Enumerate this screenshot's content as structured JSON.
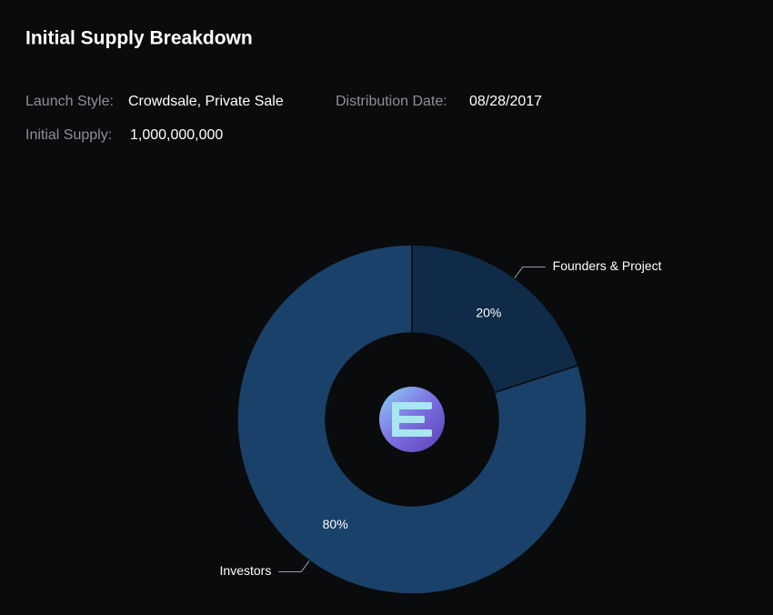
{
  "chart_data": {
    "type": "pie",
    "title": "Initial Supply Breakdown",
    "categories": [
      "Founders & Project",
      "Investors"
    ],
    "values": [
      20,
      80
    ],
    "value_labels": [
      "20%",
      "80%"
    ],
    "colors": [
      "#0f2b47",
      "#1a4169"
    ],
    "donut": true
  },
  "details": [
    {
      "label": "Launch Style:",
      "value": "Crowdsale, Private Sale"
    },
    {
      "label": "Distribution Date:",
      "value": "08/28/2017"
    },
    {
      "label": "Initial Supply:",
      "value": "1,000,000,000"
    }
  ]
}
